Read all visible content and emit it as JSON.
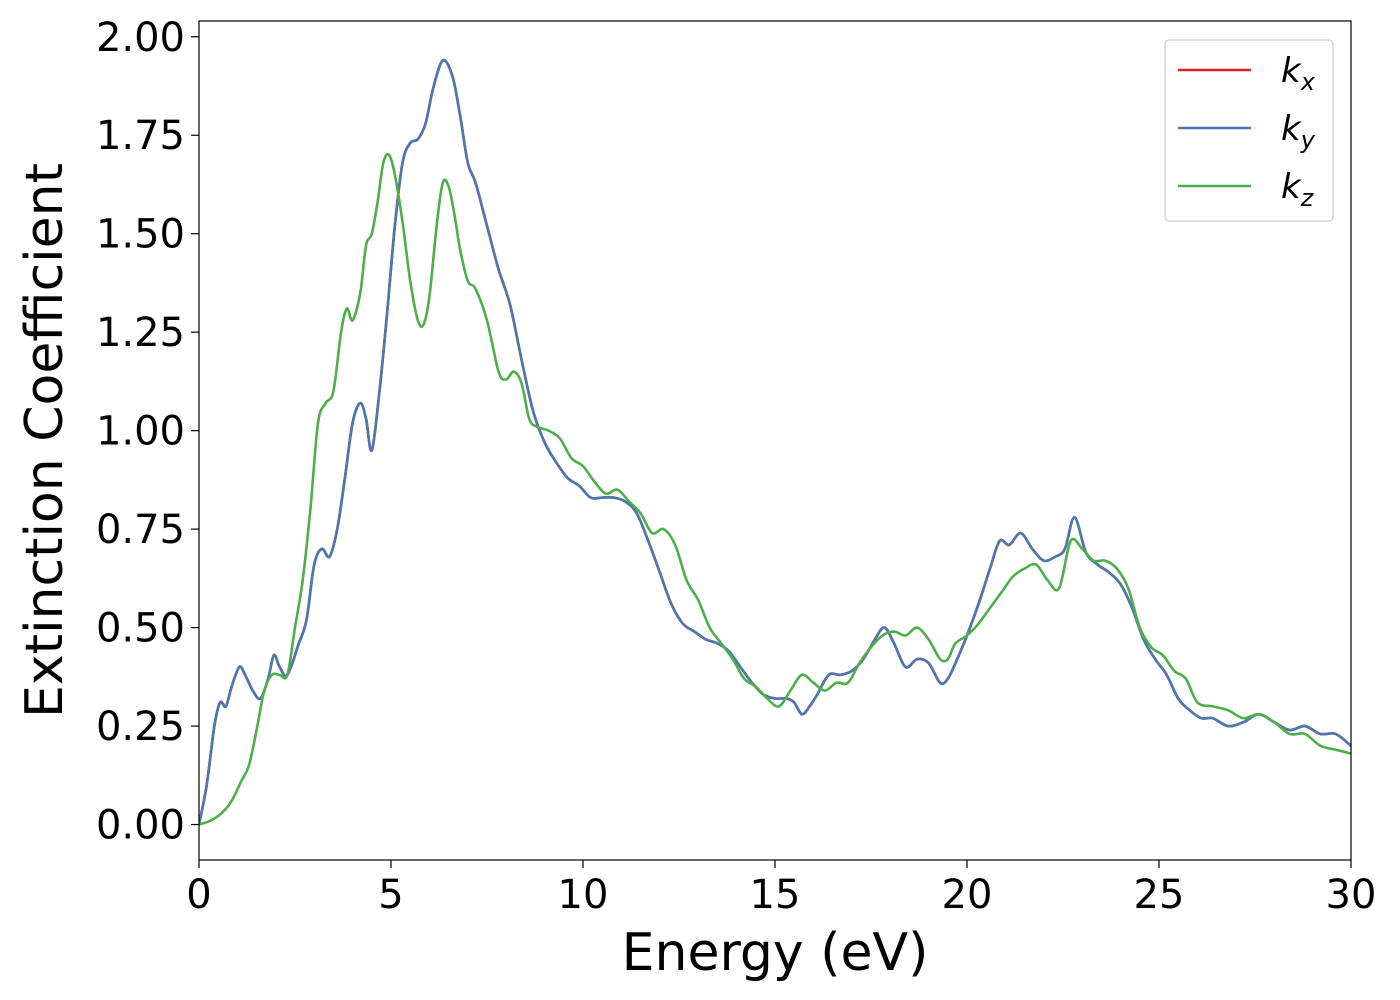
{
  "chart_data": {
    "type": "line",
    "title": "",
    "xlabel": "Energy (eV)",
    "ylabel": "Extinction Coefficient",
    "xlim": [
      0,
      30
    ],
    "ylim": [
      -0.09,
      2.04
    ],
    "xticks": [
      0,
      5,
      10,
      15,
      20,
      25,
      30
    ],
    "xtick_labels": [
      "0",
      "5",
      "10",
      "15",
      "20",
      "25",
      "30"
    ],
    "yticks": [
      0.0,
      0.25,
      0.5,
      0.75,
      1.0,
      1.25,
      1.5,
      1.75,
      2.0
    ],
    "ytick_labels": [
      "0.00",
      "0.25",
      "0.50",
      "0.75",
      "1.00",
      "1.25",
      "1.50",
      "1.75",
      "2.00"
    ],
    "grid": false,
    "legend_position": "top-right",
    "series": [
      {
        "name": "k_x",
        "label_main": "k",
        "label_sub": "x",
        "color": "#e41a1c",
        "x": [
          0,
          0.2,
          0.4,
          0.55,
          0.7,
          0.85,
          1.05,
          1.2,
          1.4,
          1.6,
          1.8,
          1.95,
          2.1,
          2.3,
          2.6,
          2.8,
          3.0,
          3.2,
          3.4,
          3.6,
          3.8,
          4.0,
          4.2,
          4.35,
          4.5,
          4.7,
          4.9,
          5.1,
          5.3,
          5.5,
          5.7,
          5.9,
          6.1,
          6.35,
          6.6,
          6.8,
          7.0,
          7.2,
          7.5,
          7.8,
          8.1,
          8.4,
          8.7,
          9.0,
          9.3,
          9.6,
          9.9,
          10.2,
          10.5,
          10.8,
          11.1,
          11.4,
          11.7,
          12.0,
          12.3,
          12.6,
          12.9,
          13.2,
          13.5,
          13.8,
          14.1,
          14.4,
          14.7,
          15.0,
          15.3,
          15.5,
          15.7,
          15.9,
          16.1,
          16.4,
          16.7,
          17.0,
          17.3,
          17.6,
          17.85,
          18.1,
          18.4,
          18.7,
          19.0,
          19.3,
          19.5,
          19.7,
          20.0,
          20.3,
          20.6,
          20.85,
          21.1,
          21.4,
          21.7,
          22.0,
          22.3,
          22.55,
          22.8,
          23.1,
          23.4,
          23.7,
          24.0,
          24.3,
          24.6,
          24.9,
          25.2,
          25.5,
          25.8,
          26.1,
          26.4,
          26.8,
          27.2,
          27.6,
          28.0,
          28.4,
          28.8,
          29.2,
          29.6,
          30.0
        ],
        "y": [
          0.0,
          0.1,
          0.25,
          0.31,
          0.3,
          0.35,
          0.4,
          0.38,
          0.34,
          0.32,
          0.37,
          0.43,
          0.4,
          0.38,
          0.46,
          0.52,
          0.66,
          0.7,
          0.68,
          0.75,
          0.88,
          1.02,
          1.07,
          1.03,
          0.95,
          1.1,
          1.3,
          1.52,
          1.68,
          1.73,
          1.74,
          1.78,
          1.87,
          1.94,
          1.9,
          1.8,
          1.68,
          1.63,
          1.52,
          1.41,
          1.32,
          1.18,
          1.05,
          0.97,
          0.92,
          0.88,
          0.86,
          0.83,
          0.83,
          0.83,
          0.82,
          0.79,
          0.72,
          0.64,
          0.56,
          0.51,
          0.49,
          0.47,
          0.46,
          0.44,
          0.4,
          0.36,
          0.33,
          0.32,
          0.32,
          0.31,
          0.28,
          0.3,
          0.33,
          0.38,
          0.38,
          0.39,
          0.42,
          0.47,
          0.5,
          0.46,
          0.4,
          0.42,
          0.41,
          0.36,
          0.37,
          0.41,
          0.48,
          0.56,
          0.65,
          0.72,
          0.71,
          0.74,
          0.7,
          0.67,
          0.68,
          0.7,
          0.78,
          0.69,
          0.66,
          0.64,
          0.61,
          0.55,
          0.47,
          0.42,
          0.38,
          0.32,
          0.29,
          0.27,
          0.27,
          0.25,
          0.26,
          0.28,
          0.26,
          0.24,
          0.25,
          0.23,
          0.23,
          0.2
        ]
      },
      {
        "name": "k_y",
        "label_main": "k",
        "label_sub": "y",
        "color": "#4a78b0",
        "x": [
          0,
          0.2,
          0.4,
          0.55,
          0.7,
          0.85,
          1.05,
          1.2,
          1.4,
          1.6,
          1.8,
          1.95,
          2.1,
          2.3,
          2.6,
          2.8,
          3.0,
          3.2,
          3.4,
          3.6,
          3.8,
          4.0,
          4.2,
          4.35,
          4.5,
          4.7,
          4.9,
          5.1,
          5.3,
          5.5,
          5.7,
          5.9,
          6.1,
          6.35,
          6.6,
          6.8,
          7.0,
          7.2,
          7.5,
          7.8,
          8.1,
          8.4,
          8.7,
          9.0,
          9.3,
          9.6,
          9.9,
          10.2,
          10.5,
          10.8,
          11.1,
          11.4,
          11.7,
          12.0,
          12.3,
          12.6,
          12.9,
          13.2,
          13.5,
          13.8,
          14.1,
          14.4,
          14.7,
          15.0,
          15.3,
          15.5,
          15.7,
          15.9,
          16.1,
          16.4,
          16.7,
          17.0,
          17.3,
          17.6,
          17.85,
          18.1,
          18.4,
          18.7,
          19.0,
          19.3,
          19.5,
          19.7,
          20.0,
          20.3,
          20.6,
          20.85,
          21.1,
          21.4,
          21.7,
          22.0,
          22.3,
          22.55,
          22.8,
          23.1,
          23.4,
          23.7,
          24.0,
          24.3,
          24.6,
          24.9,
          25.2,
          25.5,
          25.8,
          26.1,
          26.4,
          26.8,
          27.2,
          27.6,
          28.0,
          28.4,
          28.8,
          29.2,
          29.6,
          30.0
        ],
        "y": [
          0.0,
          0.1,
          0.25,
          0.31,
          0.3,
          0.35,
          0.4,
          0.38,
          0.34,
          0.32,
          0.37,
          0.43,
          0.4,
          0.38,
          0.46,
          0.52,
          0.66,
          0.7,
          0.68,
          0.75,
          0.88,
          1.02,
          1.07,
          1.03,
          0.95,
          1.1,
          1.3,
          1.52,
          1.68,
          1.73,
          1.74,
          1.78,
          1.87,
          1.94,
          1.9,
          1.8,
          1.68,
          1.63,
          1.52,
          1.41,
          1.32,
          1.18,
          1.05,
          0.97,
          0.92,
          0.88,
          0.86,
          0.83,
          0.83,
          0.83,
          0.82,
          0.79,
          0.72,
          0.64,
          0.56,
          0.51,
          0.49,
          0.47,
          0.46,
          0.44,
          0.4,
          0.36,
          0.33,
          0.32,
          0.32,
          0.31,
          0.28,
          0.3,
          0.33,
          0.38,
          0.38,
          0.39,
          0.42,
          0.47,
          0.5,
          0.46,
          0.4,
          0.42,
          0.41,
          0.36,
          0.37,
          0.41,
          0.48,
          0.56,
          0.65,
          0.72,
          0.71,
          0.74,
          0.7,
          0.67,
          0.68,
          0.7,
          0.78,
          0.69,
          0.66,
          0.64,
          0.61,
          0.55,
          0.47,
          0.42,
          0.38,
          0.32,
          0.29,
          0.27,
          0.27,
          0.25,
          0.26,
          0.28,
          0.26,
          0.24,
          0.25,
          0.23,
          0.23,
          0.2
        ]
      },
      {
        "name": "k_z",
        "label_main": "k",
        "label_sub": "z",
        "color": "#4daf4a",
        "x": [
          0,
          0.3,
          0.6,
          0.85,
          1.1,
          1.3,
          1.5,
          1.7,
          1.9,
          2.1,
          2.3,
          2.5,
          2.7,
          2.9,
          3.1,
          3.3,
          3.5,
          3.7,
          3.85,
          4.0,
          4.2,
          4.35,
          4.5,
          4.65,
          4.8,
          4.95,
          5.1,
          5.3,
          5.5,
          5.7,
          5.85,
          6.0,
          6.2,
          6.35,
          6.5,
          6.65,
          6.8,
          7.0,
          7.2,
          7.5,
          7.8,
          8.0,
          8.2,
          8.4,
          8.6,
          8.8,
          9.1,
          9.4,
          9.7,
          10.0,
          10.3,
          10.6,
          10.9,
          11.2,
          11.5,
          11.8,
          12.1,
          12.4,
          12.7,
          13.0,
          13.3,
          13.6,
          13.9,
          14.2,
          14.5,
          14.8,
          15.1,
          15.4,
          15.7,
          16.0,
          16.3,
          16.6,
          16.9,
          17.2,
          17.5,
          17.8,
          18.1,
          18.4,
          18.7,
          19.0,
          19.3,
          19.5,
          19.7,
          20.0,
          20.3,
          20.6,
          20.9,
          21.2,
          21.5,
          21.8,
          22.1,
          22.4,
          22.7,
          23.0,
          23.3,
          23.6,
          23.9,
          24.2,
          24.5,
          24.8,
          25.1,
          25.4,
          25.7,
          26.0,
          26.4,
          26.8,
          27.2,
          27.6,
          28.0,
          28.4,
          28.8,
          29.2,
          29.6,
          30.0
        ],
        "y": [
          0.0,
          0.01,
          0.03,
          0.06,
          0.11,
          0.15,
          0.24,
          0.34,
          0.38,
          0.38,
          0.38,
          0.5,
          0.62,
          0.8,
          1.02,
          1.07,
          1.1,
          1.25,
          1.31,
          1.28,
          1.35,
          1.47,
          1.5,
          1.58,
          1.68,
          1.7,
          1.65,
          1.53,
          1.38,
          1.28,
          1.27,
          1.34,
          1.53,
          1.63,
          1.62,
          1.55,
          1.46,
          1.38,
          1.36,
          1.28,
          1.15,
          1.13,
          1.15,
          1.12,
          1.03,
          1.01,
          1.0,
          0.98,
          0.93,
          0.91,
          0.87,
          0.84,
          0.85,
          0.82,
          0.79,
          0.74,
          0.75,
          0.71,
          0.62,
          0.57,
          0.5,
          0.46,
          0.42,
          0.37,
          0.35,
          0.32,
          0.3,
          0.34,
          0.38,
          0.36,
          0.34,
          0.36,
          0.36,
          0.41,
          0.45,
          0.48,
          0.49,
          0.48,
          0.5,
          0.47,
          0.42,
          0.42,
          0.46,
          0.48,
          0.51,
          0.55,
          0.59,
          0.63,
          0.65,
          0.66,
          0.62,
          0.6,
          0.72,
          0.7,
          0.67,
          0.67,
          0.65,
          0.6,
          0.5,
          0.45,
          0.43,
          0.39,
          0.37,
          0.31,
          0.3,
          0.29,
          0.27,
          0.28,
          0.26,
          0.23,
          0.23,
          0.2,
          0.19,
          0.18
        ]
      }
    ]
  }
}
